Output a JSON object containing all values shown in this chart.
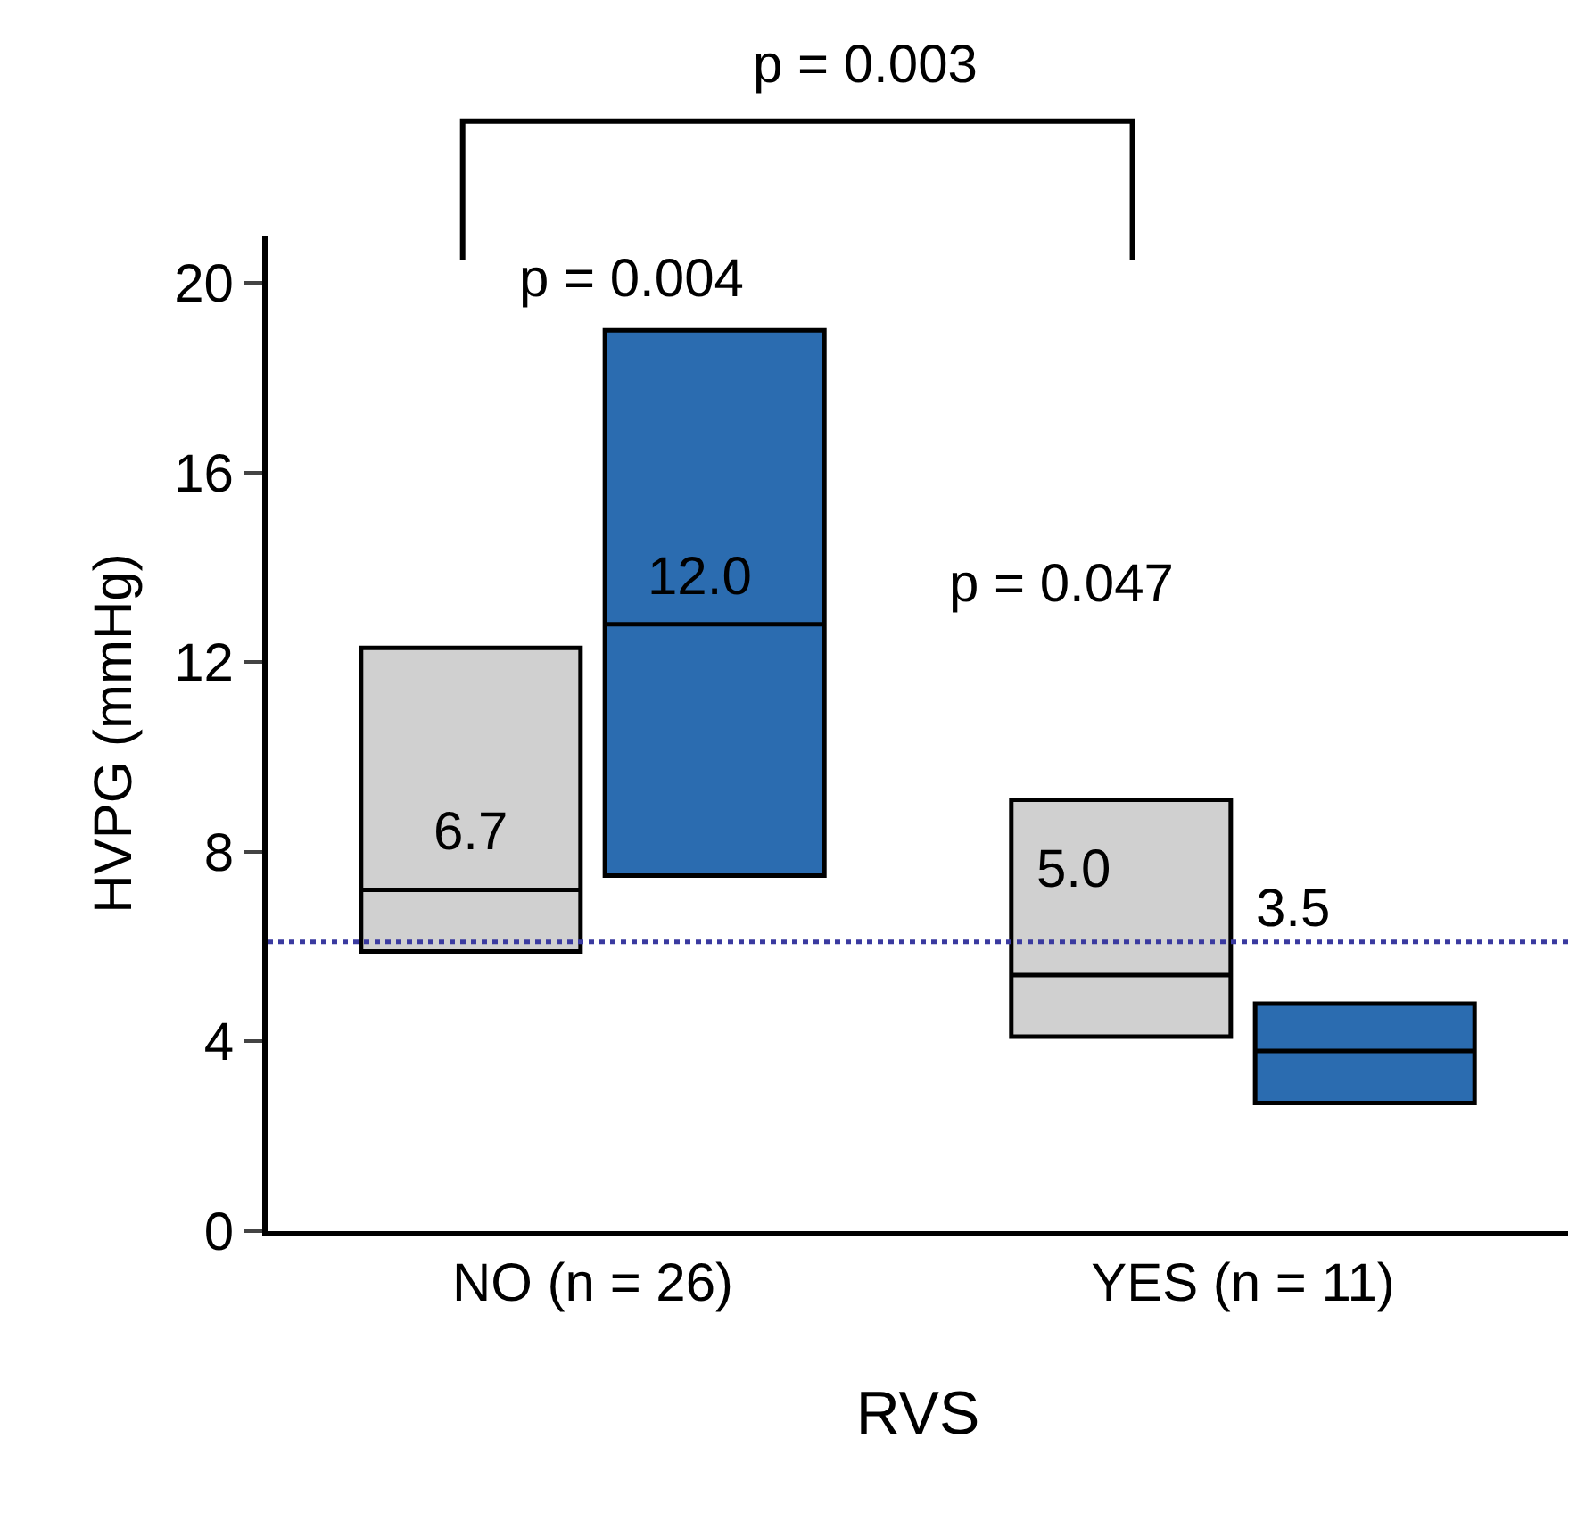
{
  "chart_data": {
    "type": "box",
    "xlabel": "RVS",
    "ylabel": "HVPG (mmHg)",
    "categories": [
      "NO (n = 26)",
      "YES (n = 11)"
    ],
    "series": [
      {
        "color": "#d0d0d0",
        "boxes": [
          {
            "q1": 5.9,
            "median": 7.2,
            "q3": 12.3
          },
          {
            "q1": 4.1,
            "median": 5.4,
            "q3": 9.1
          }
        ]
      },
      {
        "color": "#2b6cb0",
        "boxes": [
          {
            "q1": 7.5,
            "median": 12.8,
            "q3": 19.0
          },
          {
            "q1": 2.7,
            "median": 3.8,
            "q3": 4.8
          }
        ]
      }
    ],
    "ylim": [
      0,
      21
    ],
    "yticks": [
      0,
      4,
      8,
      12,
      16,
      20
    ],
    "legend": false,
    "ref_lines": [
      {
        "axis": "y",
        "value": 6.1,
        "color": "#3a3aa0",
        "line_style": "dotted"
      }
    ],
    "annotations": [
      "p = 0.003",
      "p = 0.004",
      "p = 0.047",
      "6.7",
      "12.0",
      "5.0",
      "3.5"
    ]
  }
}
